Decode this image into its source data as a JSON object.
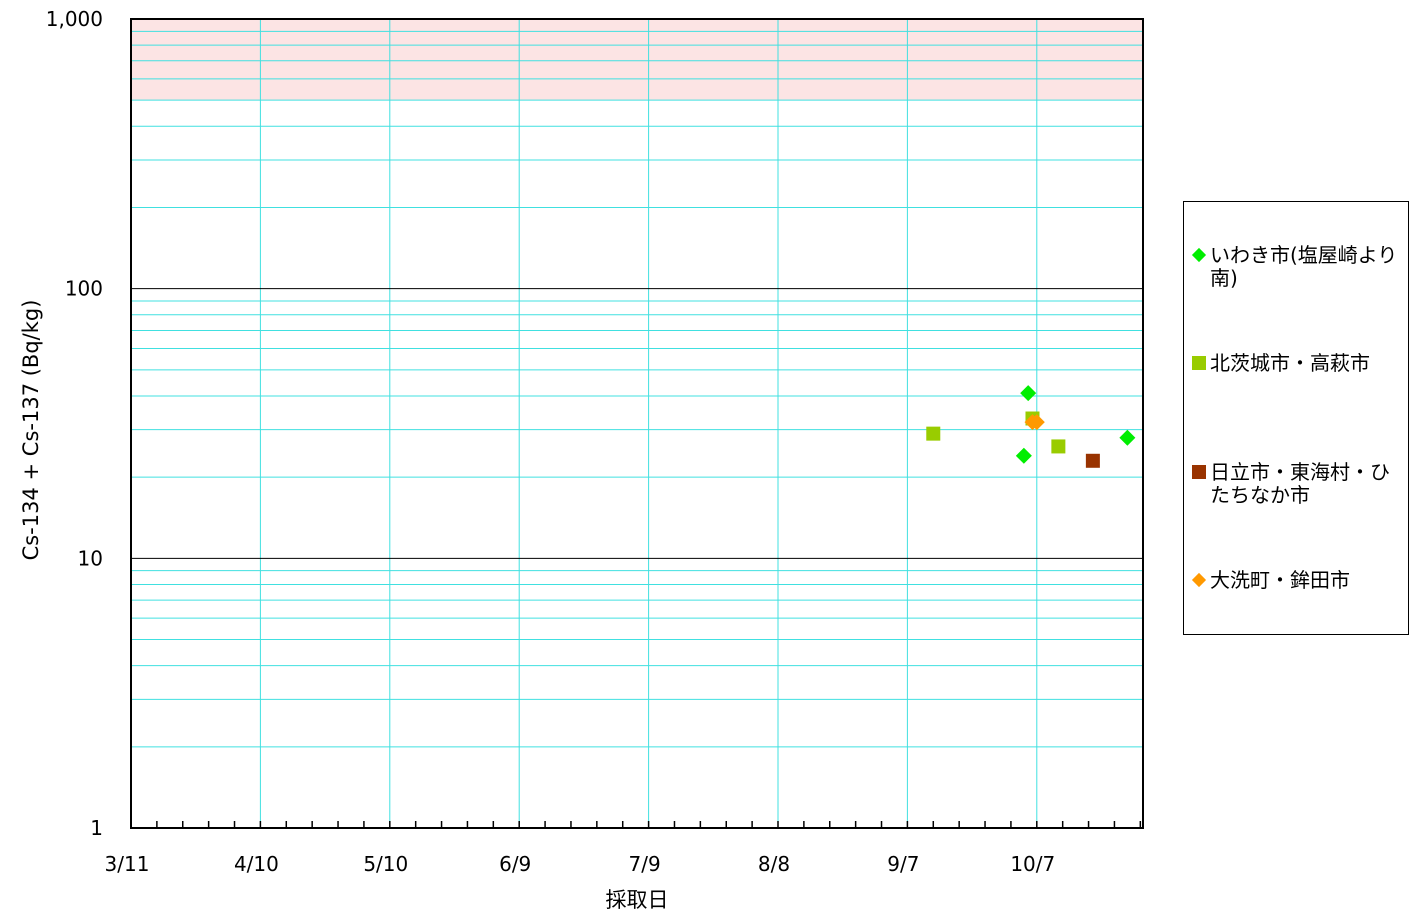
{
  "chart_data": {
    "type": "scatter",
    "title": "",
    "xlabel": "採取日",
    "ylabel": "Cs-134 + Cs-137 (Bq/kg)",
    "yscale": "log",
    "ylim": [
      1,
      1000
    ],
    "xlim": [
      "3/11",
      "11/1"
    ],
    "x_tick_labels": [
      "3/11",
      "4/10",
      "5/10",
      "6/9",
      "7/9",
      "8/8",
      "9/7",
      "10/7"
    ],
    "y_tick_labels": [
      "1",
      "10",
      "100",
      "1,000"
    ],
    "shaded_band": {
      "from": 500,
      "to": 1000,
      "color": "#fce4e4"
    },
    "grid": true,
    "legend_position": "right",
    "series": [
      {
        "name": "いわき市(塩屋崎より南)",
        "marker": "diamond",
        "color": "#00ee00",
        "points": [
          {
            "x": "10/4",
            "y": 24
          },
          {
            "x": "10/5",
            "y": 41
          },
          {
            "x": "10/28",
            "y": 28
          }
        ]
      },
      {
        "name": "北茨城市・高萩市",
        "marker": "square",
        "color": "#99cc00",
        "points": [
          {
            "x": "9/13",
            "y": 29
          },
          {
            "x": "10/6",
            "y": 33
          },
          {
            "x": "10/12",
            "y": 26
          }
        ]
      },
      {
        "name": "日立市・東海村・ひたちなか市",
        "marker": "square",
        "color": "#993300",
        "points": [
          {
            "x": "10/20",
            "y": 23
          }
        ]
      },
      {
        "name": "大洗町・鉾田市",
        "marker": "diamond",
        "color": "#ff9900",
        "points": [
          {
            "x": "10/6",
            "y": 32
          },
          {
            "x": "10/7",
            "y": 32
          }
        ]
      }
    ],
    "colors": {
      "minor_grid": "#40e0e0",
      "major_grid": "#000000",
      "axis": "#000000"
    }
  }
}
